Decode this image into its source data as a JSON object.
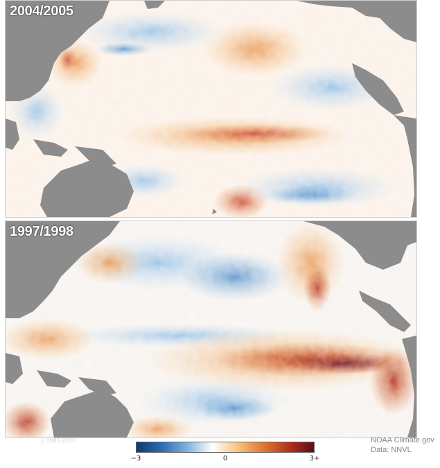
{
  "panels": [
    {
      "label": "2004/2005"
    },
    {
      "label": "1997/1998"
    }
  ],
  "faint_text": "...y 1981-2010",
  "colorbar": {
    "tick_labels": [
      "−3",
      "0",
      "3+"
    ],
    "range": [
      -3,
      3
    ],
    "colors": [
      "#0d3a6e",
      "#2b6cb0",
      "#7fb2dd",
      "#ffffff",
      "#f6c27e",
      "#e07830",
      "#b4321c",
      "#5a0d1e"
    ]
  },
  "credit": {
    "line1": "NOAA Climate.gov",
    "line2": "Data: NNVL"
  },
  "colors": {
    "land": "#8c8c8c",
    "warm": "#c0392b",
    "cool": "#3a7cc0"
  }
}
